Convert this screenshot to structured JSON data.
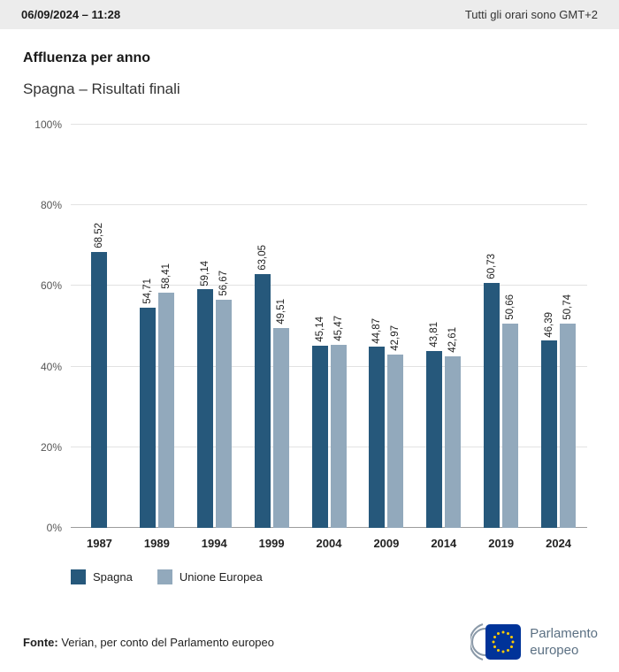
{
  "header": {
    "datetime": "06/09/2024 – 11:28",
    "timezone_note": "Tutti gli orari sono GMT+2"
  },
  "title": "Affluenza per anno",
  "subtitle": "Spagna – Risultati finali",
  "chart_data": {
    "type": "bar",
    "categories": [
      "1987",
      "1989",
      "1994",
      "1999",
      "2004",
      "2009",
      "2014",
      "2019",
      "2024"
    ],
    "series": [
      {
        "name": "Spagna",
        "color": "#26587b",
        "values": [
          68.52,
          54.71,
          59.14,
          63.05,
          45.14,
          44.87,
          43.81,
          60.73,
          46.39
        ]
      },
      {
        "name": "Unione Europea",
        "color": "#92a9bc",
        "values": [
          null,
          58.41,
          56.67,
          49.51,
          45.47,
          42.97,
          42.61,
          50.66,
          50.74
        ]
      }
    ],
    "value_label_decimal_separator": ",",
    "title": "Affluenza per anno",
    "xlabel": "",
    "ylabel": "",
    "ylim": [
      0,
      100
    ],
    "yticks": [
      0,
      20,
      40,
      60,
      80,
      100
    ],
    "ytick_labels": [
      "0%",
      "20%",
      "40%",
      "60%",
      "80%",
      "100%"
    ],
    "grid": true,
    "legend_position": "bottom-left"
  },
  "footer": {
    "source_label": "Fonte:",
    "source_text": " Verian, per conto del Parlamento europeo"
  },
  "logo": {
    "line1": "Parlamento",
    "line2": "europeo"
  },
  "colors": {
    "spagna": "#26587b",
    "unione_europea": "#92a9bc",
    "flag_blue": "#003399",
    "flag_star": "#ffcc00"
  }
}
